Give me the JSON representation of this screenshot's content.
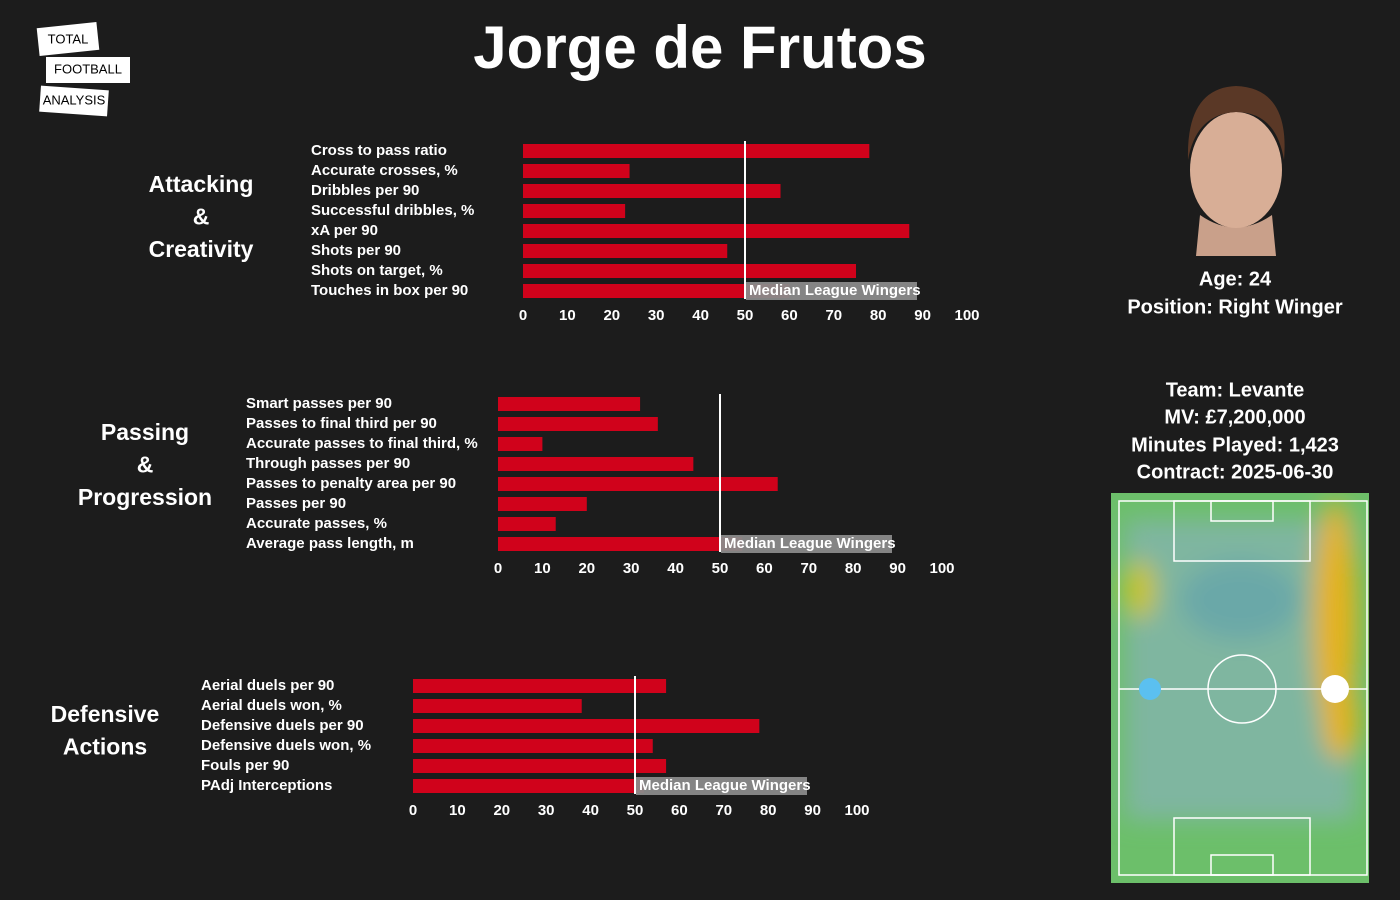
{
  "title": "Jorge de Frutos",
  "logo": [
    "TOTAL",
    "FOOTBALL",
    "ANALYSIS"
  ],
  "player": {
    "info_top": [
      "Age: 24",
      "Position: Right Winger"
    ],
    "info_bottom": [
      "Team: Levante",
      "MV: £7,200,000",
      "Minutes Played: 1,423",
      "Contract: 2025-06-30"
    ]
  },
  "chart_data": [
    {
      "type": "barh",
      "section": [
        "Attacking",
        "&",
        "Creativity"
      ],
      "categories": [
        "Cross to pass ratio",
        "Accurate crosses, %",
        "Dribbles per 90",
        "Successful dribbles, %",
        "xA per 90",
        "Shots per 90",
        "Shots on target, %",
        "Touches in box per 90"
      ],
      "values": [
        78,
        24,
        58,
        23,
        87,
        46,
        75,
        60
      ],
      "color": "#d0021b",
      "xlim": [
        0,
        100
      ],
      "xticks": [
        0,
        10,
        20,
        30,
        40,
        50,
        60,
        70,
        80,
        90,
        100
      ],
      "median": 50,
      "median_label": "Median League Wingers"
    },
    {
      "type": "barh",
      "section": [
        "Passing",
        "&",
        "Progression"
      ],
      "categories": [
        "Smart passes per 90",
        "Passes to final third per 90",
        "Accurate passes to final third, %",
        "Through passes per 90",
        "Passes to penalty area per 90",
        "Passes per 90",
        "Accurate passes, %",
        "Average pass length, m"
      ],
      "values": [
        32,
        36,
        10,
        44,
        63,
        20,
        13,
        55
      ],
      "color": "#d0021b",
      "xlim": [
        0,
        100
      ],
      "xticks": [
        0,
        10,
        20,
        30,
        40,
        50,
        60,
        70,
        80,
        90,
        100
      ],
      "median": 50,
      "median_label": "Median League Wingers"
    },
    {
      "type": "barh",
      "section": [
        "Defensive",
        "Actions"
      ],
      "categories": [
        "Aerial duels per 90",
        "Aerial duels won, %",
        "Defensive duels per 90",
        "Defensive duels won, %",
        "Fouls per 90",
        "PAdj Interceptions"
      ],
      "values": [
        57,
        38,
        78,
        54,
        57,
        52
      ],
      "color": "#d0021b",
      "xlim": [
        0,
        100
      ],
      "xticks": [
        0,
        10,
        20,
        30,
        40,
        50,
        60,
        70,
        80,
        90,
        100
      ],
      "median": 50,
      "median_label": "Median League Wingers"
    }
  ]
}
